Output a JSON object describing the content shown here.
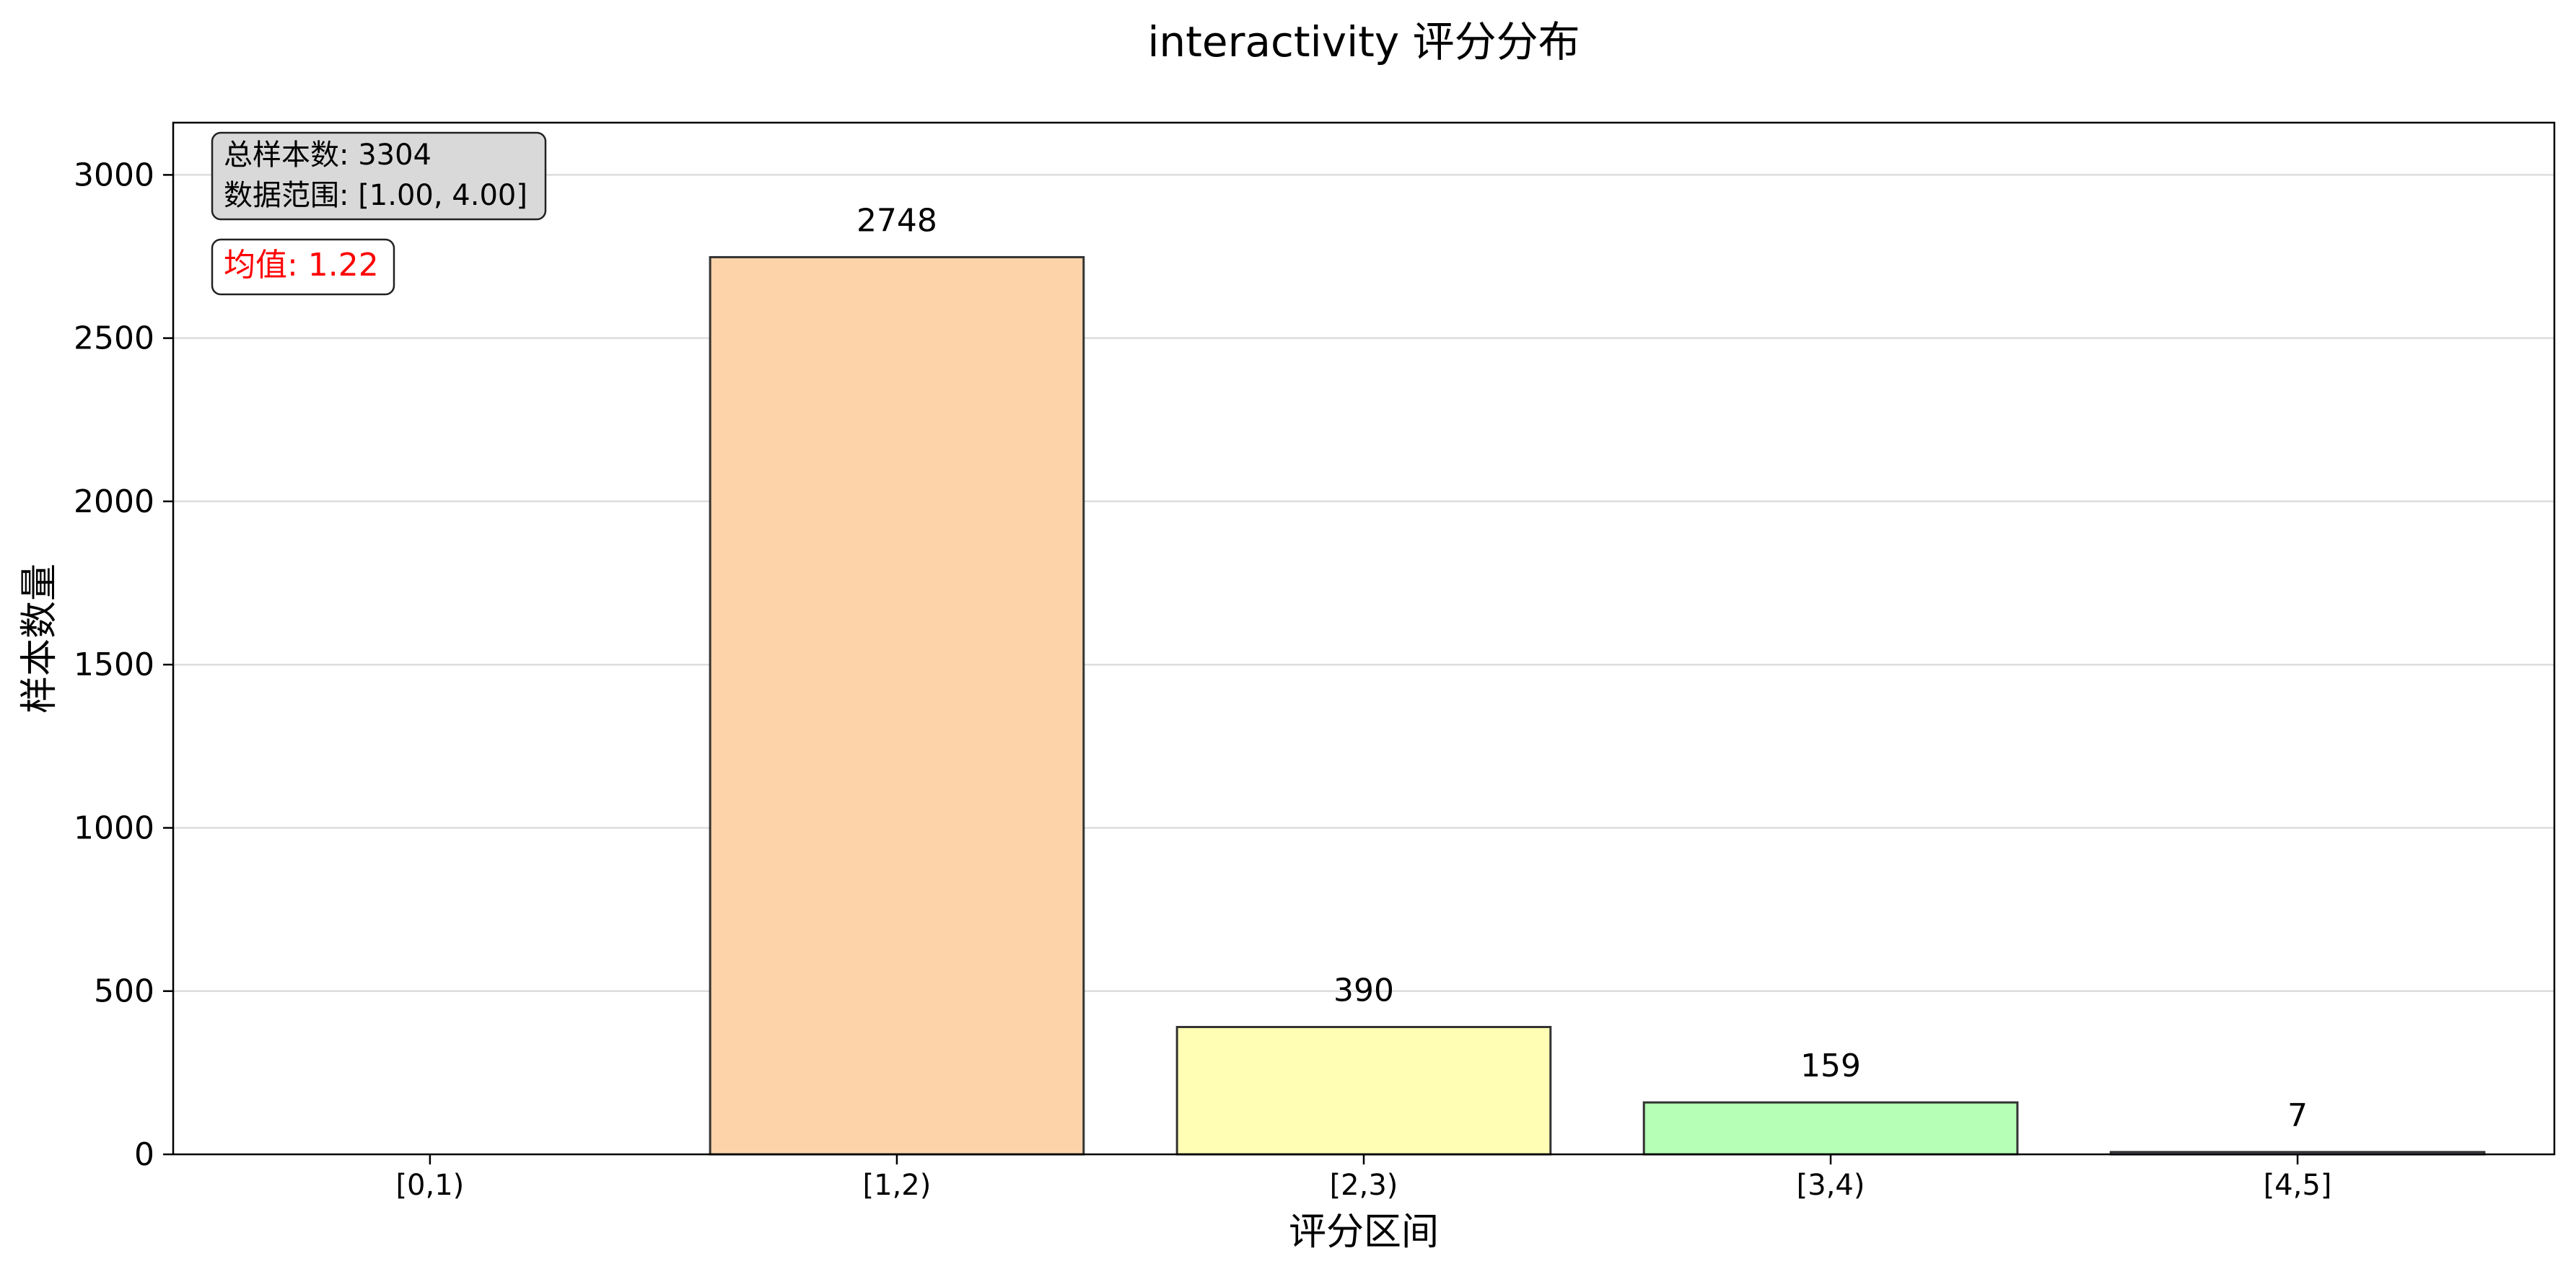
{
  "chart_data": {
    "type": "bar",
    "title": "interactivity 评分分布",
    "xlabel": "评分区间",
    "ylabel": "样本数量",
    "categories": [
      "[0,1)",
      "[1,2)",
      "[2,3)",
      "[3,4)",
      "[4,5]"
    ],
    "values": [
      0,
      2748,
      390,
      159,
      7
    ],
    "value_labels": [
      "",
      "2748",
      "390",
      "159",
      "7"
    ],
    "bar_colors": [
      "#ffb6b6",
      "#fdd3a8",
      "#fffeb2",
      "#b5ffb5",
      "#b4d4fa"
    ],
    "ylim": [
      0,
      3160
    ],
    "yticks": [
      0,
      500,
      1000,
      1500,
      2000,
      2500,
      3000
    ],
    "grid": "y",
    "stats_box": {
      "total_label": "总样本数: 3304",
      "range_label": "数据范围: [1.00, 4.00]"
    },
    "mean_label": "均值: 1.22",
    "mean_color": "#ff0000"
  }
}
